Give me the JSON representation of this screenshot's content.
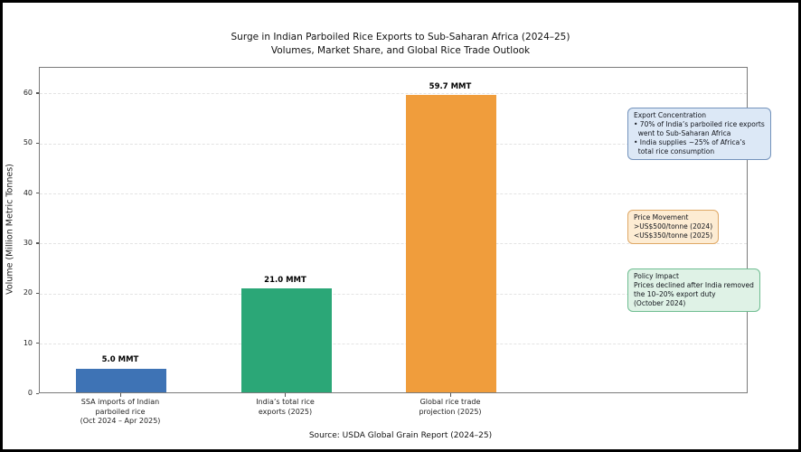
{
  "title": "Surge in Indian Parboiled Rice Exports to Sub-Saharan Africa (2024–25)",
  "subtitle": "Volumes, Market Share, and Global Rice Trade Outlook",
  "source": "Source: USDA Global Grain Report (2024–25)",
  "chart_data": {
    "type": "bar",
    "title": "Surge in Indian Parboiled Rice Exports to Sub-Saharan Africa (2024–25)",
    "subtitle": "Volumes, Market Share, and Global Rice Trade Outlook",
    "categories": [
      "SSA imports of Indian\nparboiled rice\n(Oct 2024 – Apr 2025)",
      "India’s total rice\nexports (2025)",
      "Global rice trade\nprojection (2025)"
    ],
    "values": [
      5.0,
      21.0,
      59.7
    ],
    "value_labels": [
      "5.0 MMT",
      "21.0 MMT",
      "59.7 MMT"
    ],
    "bar_colors": [
      "#3E73B5",
      "#2BA777",
      "#F09D3C"
    ],
    "xlabel": "",
    "ylabel": "Volume (Million Metric Tonnes)",
    "yticks": [
      0,
      10,
      20,
      30,
      40,
      50,
      60
    ],
    "ylim": [
      0,
      65.24
    ],
    "grid": "horizontal-dashed",
    "legend": "none",
    "annotations": [
      {
        "title": "Export Concentration",
        "lines": [
          "• 70% of India’s parboiled rice exports",
          "  went to Sub-Saharan Africa",
          "• India supplies ~25% of Africa’s",
          "  total rice consumption"
        ],
        "fill": "#DCE8F6",
        "border": "#7493BC"
      },
      {
        "title": "Price Movement",
        "lines": [
          ">US$500/tonne (2024)",
          "<US$350/tonne (2025)"
        ],
        "fill": "#FDECD3",
        "border": "#DFA866"
      },
      {
        "title": "Policy Impact",
        "lines": [
          "Prices declined after India removed",
          "the 10–20% export duty",
          "(October 2024)"
        ],
        "fill": "#DFF2E6",
        "border": "#6FBD91"
      }
    ]
  }
}
